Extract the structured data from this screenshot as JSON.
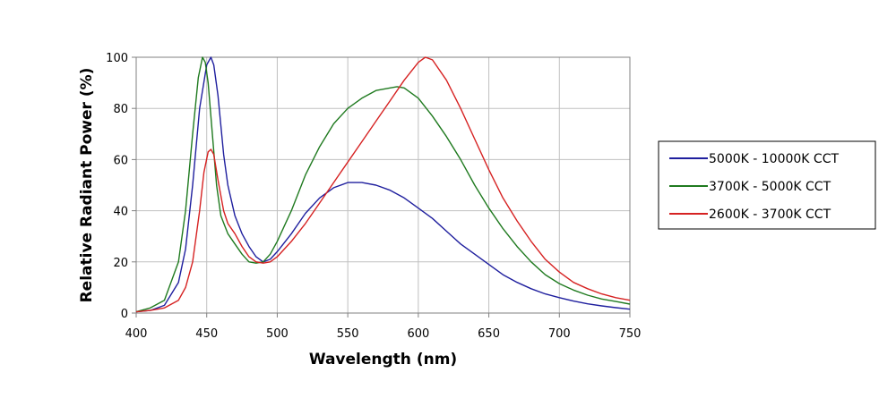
{
  "chart_data": {
    "type": "line",
    "title": "",
    "xlabel": "Wavelength (nm)",
    "ylabel": "Relative Radiant Power (%)",
    "xlim": [
      400,
      750
    ],
    "ylim": [
      0,
      100
    ],
    "xticks": [
      400,
      450,
      500,
      550,
      600,
      650,
      700,
      750
    ],
    "yticks": [
      0,
      20,
      40,
      60,
      80,
      100
    ],
    "grid": true,
    "legend_position": "right",
    "series": [
      {
        "name": "5000K - 10000K CCT",
        "color": "#1f1f9e",
        "x": [
          400,
          410,
          420,
          430,
          435,
          440,
          445,
          450,
          453,
          455,
          458,
          462,
          465,
          470,
          475,
          480,
          485,
          490,
          495,
          500,
          510,
          520,
          530,
          540,
          550,
          560,
          570,
          580,
          590,
          600,
          610,
          620,
          630,
          640,
          650,
          660,
          670,
          680,
          690,
          700,
          710,
          720,
          730,
          740,
          750
        ],
        "y": [
          0.5,
          1,
          3,
          12,
          25,
          50,
          80,
          97,
          100,
          97,
          85,
          62,
          50,
          38,
          31,
          26,
          22,
          20,
          21,
          24,
          31,
          39,
          45,
          49,
          51,
          51,
          50,
          48,
          45,
          41,
          37,
          32,
          27,
          23,
          19,
          15,
          12,
          9.5,
          7.5,
          6,
          4.7,
          3.6,
          2.8,
          2.1,
          1.5
        ]
      },
      {
        "name": "3700K - 5000K CCT",
        "color": "#1f7a1f",
        "x": [
          400,
          410,
          420,
          430,
          435,
          440,
          444,
          447,
          449,
          451,
          454,
          457,
          460,
          465,
          470,
          475,
          480,
          485,
          490,
          495,
          500,
          510,
          520,
          530,
          540,
          550,
          560,
          570,
          580,
          585,
          590,
          600,
          610,
          620,
          630,
          640,
          650,
          660,
          670,
          680,
          690,
          700,
          710,
          720,
          730,
          740,
          750
        ],
        "y": [
          0.5,
          2,
          5,
          20,
          40,
          70,
          92,
          100,
          98,
          90,
          70,
          50,
          38,
          31,
          27,
          23,
          20,
          19.5,
          20,
          23,
          28,
          40,
          54,
          65,
          74,
          80,
          84,
          87,
          88,
          88.5,
          88,
          84,
          77,
          69,
          60,
          50,
          41,
          33,
          26,
          20,
          15,
          11.5,
          9,
          7,
          5.5,
          4.5,
          3.5
        ]
      },
      {
        "name": "2600K - 3700K CCT",
        "color": "#d62222",
        "x": [
          400,
          410,
          420,
          430,
          435,
          440,
          445,
          448,
          451,
          453,
          455,
          458,
          462,
          465,
          470,
          475,
          480,
          485,
          490,
          495,
          500,
          510,
          520,
          530,
          540,
          550,
          560,
          570,
          580,
          590,
          600,
          605,
          610,
          620,
          630,
          640,
          650,
          660,
          670,
          680,
          690,
          700,
          710,
          720,
          730,
          740,
          750
        ],
        "y": [
          0.5,
          1,
          2,
          5,
          10,
          20,
          40,
          55,
          63,
          64,
          62,
          52,
          40,
          35,
          31,
          26,
          22,
          20,
          19.5,
          20,
          22,
          28,
          35,
          43,
          51,
          59,
          67,
          75,
          83,
          91,
          98,
          100,
          99,
          91,
          80,
          68,
          56,
          45,
          36,
          28,
          21,
          16,
          12,
          9.5,
          7.5,
          6,
          5
        ]
      }
    ]
  }
}
